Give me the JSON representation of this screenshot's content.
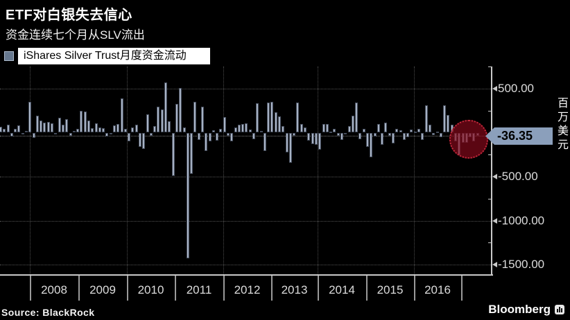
{
  "title": "ETF对白银失去信心",
  "subtitle": "资金连续七个月从SLV流出",
  "legend": {
    "label": "iShares Silver Trust月度资金流动"
  },
  "source": "Source: BlackRock",
  "brand": {
    "name": "Bloomberg"
  },
  "axis_tag": {
    "label": "-36.35"
  },
  "unit_label": "百万美元",
  "colors": {
    "background": "#000000",
    "bar_fill": "#a6b1c4",
    "bar_edge": "#454d5c",
    "axis": "#c9c9c9",
    "tag_bg": "#8b9fbb",
    "circle_fill": "rgba(134,9,27,0.68)",
    "circle_border": "#cd2d41",
    "legend_swatch": "#66788f"
  },
  "chart_data": {
    "type": "bar",
    "title": "ETF对白银失去信心",
    "subtitle": "资金连续七个月从SLV流出",
    "series_name": "iShares Silver Trust月度资金流动",
    "ylabel": "百万美元",
    "ylim": [
      -1600,
      740
    ],
    "grid": "dotted, horizontal at labeled ticks and vertical at alternate year ticks",
    "legend_position": "top-left",
    "x_year_ticks": [
      "2008",
      "2009",
      "2010",
      "2011",
      "2012",
      "2013",
      "2014",
      "2015",
      "2016"
    ],
    "y_major_ticks": [
      500,
      -500,
      -1000,
      -1500
    ],
    "y_major_tick_labels": [
      "500.00",
      "-500.00",
      "-1000.00",
      "-1500.00"
    ],
    "y_minor_ticks": [
      750,
      250,
      0,
      -250,
      -750,
      -1250
    ],
    "last_value": -36.35,
    "annotation": "red dotted circle highlighting final seven consecutive monthly outflows",
    "x_start": "2007 (partial year before first tick)",
    "values": [
      69,
      42,
      90,
      -45,
      42,
      82,
      -13,
      21,
      352,
      -58,
      193,
      140,
      114,
      122,
      108,
      -19,
      167,
      87,
      154,
      -32,
      16,
      42,
      246,
      241,
      140,
      48,
      106,
      61,
      53,
      -45,
      -19,
      79,
      95,
      392,
      42,
      -98,
      61,
      93,
      -164,
      -185,
      212,
      -32,
      74,
      299,
      265,
      571,
      130,
      -490,
      330,
      510,
      60,
      -1430,
      -465,
      351,
      -80,
      298,
      -212,
      -98,
      26,
      -90,
      42,
      180,
      -32,
      -98,
      61,
      87,
      100,
      106,
      34,
      -72,
      333,
      16,
      -212,
      344,
      351,
      233,
      185,
      74,
      -223,
      -345,
      -32,
      344,
      95,
      61,
      -90,
      -132,
      -138,
      -196,
      95,
      100,
      8,
      42,
      -32,
      -85,
      -19,
      74,
      193,
      344,
      -71,
      42,
      -164,
      -283,
      -45,
      100,
      -138,
      114,
      -32,
      -124,
      42,
      26,
      -85,
      -50,
      38,
      10,
      40,
      -80,
      308,
      91,
      -28,
      8,
      -50,
      312,
      197,
      91,
      -98,
      -257,
      -114,
      -114,
      -50,
      -98,
      -36.35
    ]
  }
}
